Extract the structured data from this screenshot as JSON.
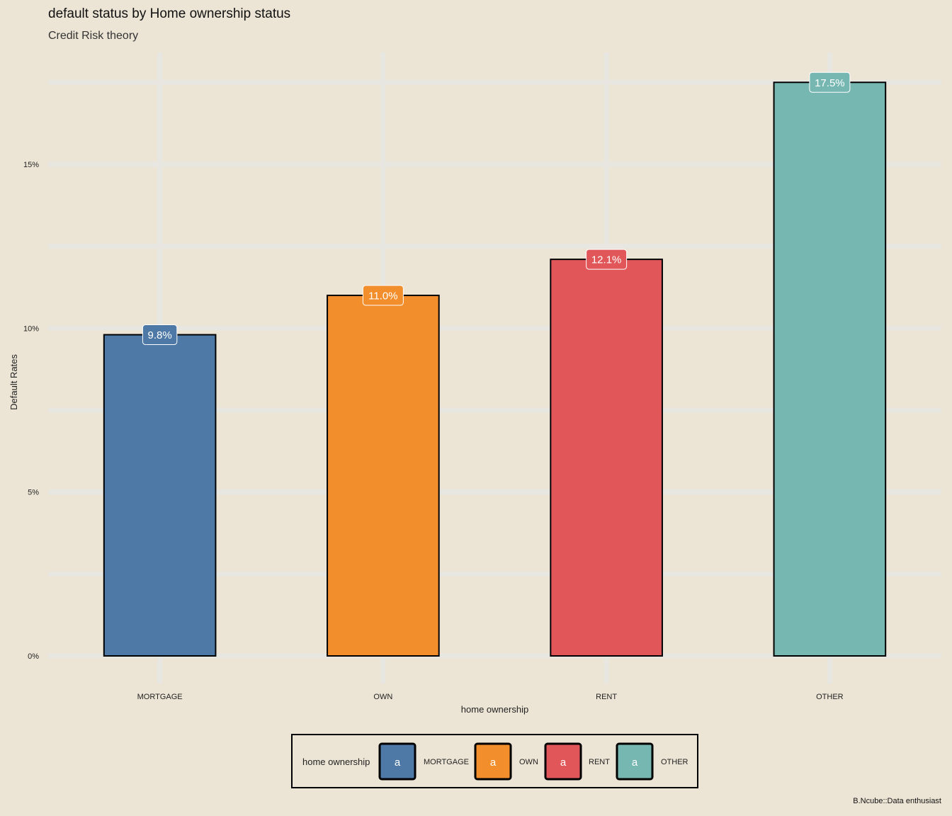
{
  "title": "default status by Home ownership status",
  "subtitle": "Credit Risk theory",
  "caption": "B.Ncube::Data enthusiast",
  "chart_data": {
    "type": "bar",
    "xlabel": "home ownership",
    "ylabel": "Default Rates",
    "categories": [
      "MORTGAGE",
      "OWN",
      "RENT",
      "OTHER"
    ],
    "values": [
      9.8,
      11.0,
      12.1,
      17.5
    ],
    "value_labels": [
      "9.8%",
      "11.0%",
      "12.1%",
      "17.5%"
    ],
    "colors": [
      "#4e79a7",
      "#f28e2b",
      "#e15759",
      "#76b7b2"
    ],
    "ylim": [
      0,
      18.4
    ],
    "yticks": [
      0,
      5,
      10,
      15
    ],
    "ytick_labels": [
      "0%",
      "5%",
      "10%",
      "15%"
    ],
    "grid": true,
    "legend": {
      "title": "home ownership",
      "position": "bottom",
      "key_glyph": "a",
      "labels": [
        "MORTGAGE",
        "OWN",
        "RENT",
        "OTHER"
      ]
    }
  }
}
